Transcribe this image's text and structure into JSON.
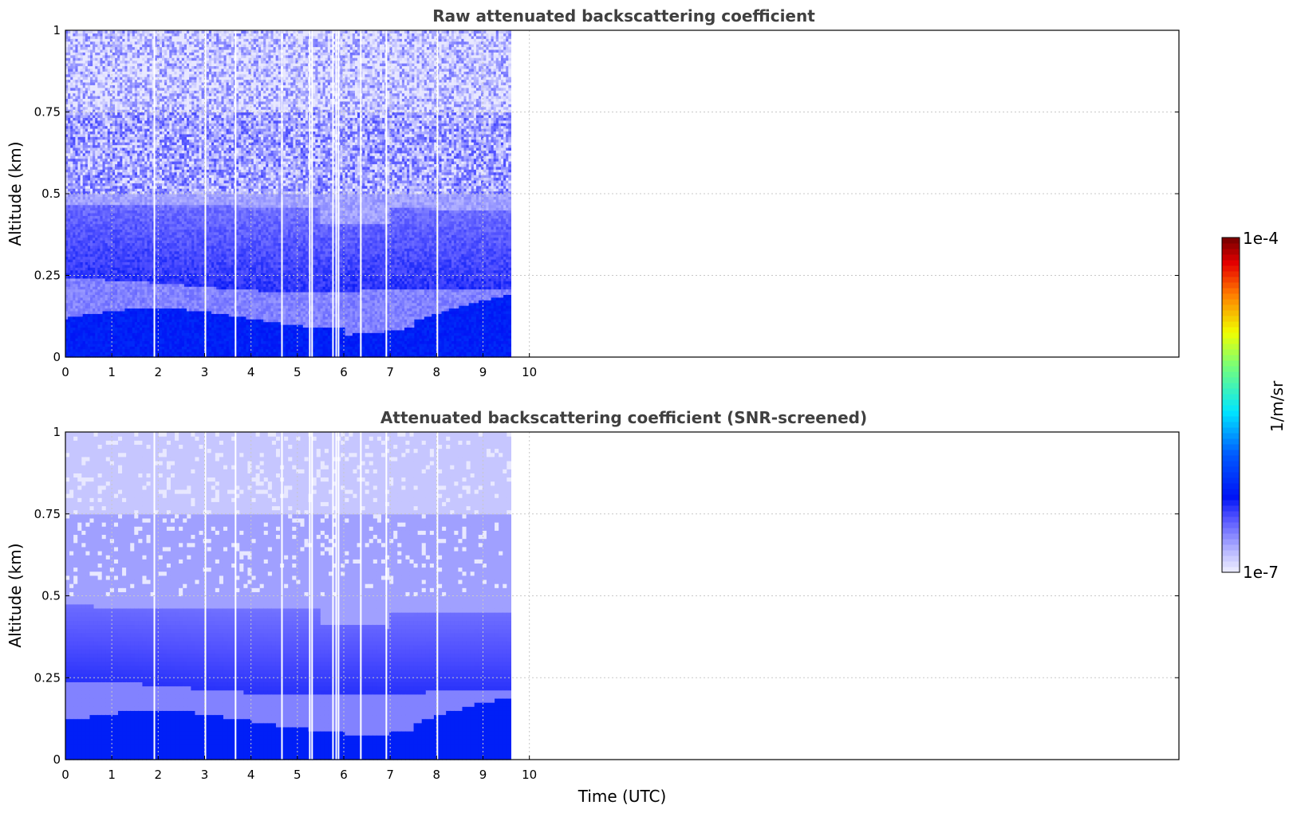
{
  "chart_data": [
    {
      "type": "heatmap",
      "title": "Raw attenuated backscattering coefficient",
      "xlabel": "",
      "ylabel": "Altitude (km)",
      "xlim": [
        0,
        24
      ],
      "ylim": [
        0,
        1
      ],
      "x_ticks": [
        "0",
        "1",
        "2",
        "3",
        "4",
        "5",
        "6",
        "7",
        "8",
        "9",
        "10"
      ],
      "y_ticks": [
        "0",
        "0.25",
        "0.5",
        "0.75",
        "1"
      ],
      "grid": true,
      "data_extent_x": [
        0,
        9.6
      ],
      "gaps_x": [
        1.9,
        3.0,
        3.65,
        4.65,
        5.25,
        5.3,
        5.75,
        5.82,
        5.87,
        6.35,
        6.9,
        8.0
      ],
      "layers_km": [
        {
          "altitude": [
            0.0,
            0.1
          ],
          "level": "1e-6"
        },
        {
          "altitude": [
            0.1,
            0.25
          ],
          "level": "3e-7"
        },
        {
          "altitude": [
            0.25,
            0.5
          ],
          "level": "8e-7"
        },
        {
          "altitude": [
            0.5,
            1.0
          ],
          "level": "2e-7"
        }
      ],
      "colorscale": "jet_white_low",
      "noisy": true
    },
    {
      "type": "heatmap",
      "title": "Attenuated backscattering coefficient (SNR-screened)",
      "xlabel": "Time (UTC)",
      "ylabel": "Altitude (km)",
      "xlim": [
        0,
        24
      ],
      "ylim": [
        0,
        1
      ],
      "x_ticks": [
        "0",
        "1",
        "2",
        "3",
        "4",
        "5",
        "6",
        "7",
        "8",
        "9",
        "10"
      ],
      "y_ticks": [
        "0",
        "0.25",
        "0.5",
        "0.75",
        "1"
      ],
      "grid": true,
      "data_extent_x": [
        0,
        9.6
      ],
      "gaps_x": [
        1.9,
        3.0,
        3.65,
        4.65,
        5.25,
        5.3,
        5.75,
        5.82,
        5.87,
        6.35,
        6.9,
        8.0
      ],
      "colorscale": "jet_white_low",
      "noisy": false
    }
  ],
  "colorbar": {
    "max_label": "1e-4",
    "min_label": "1e-7",
    "unit_label": "1/m/sr"
  }
}
